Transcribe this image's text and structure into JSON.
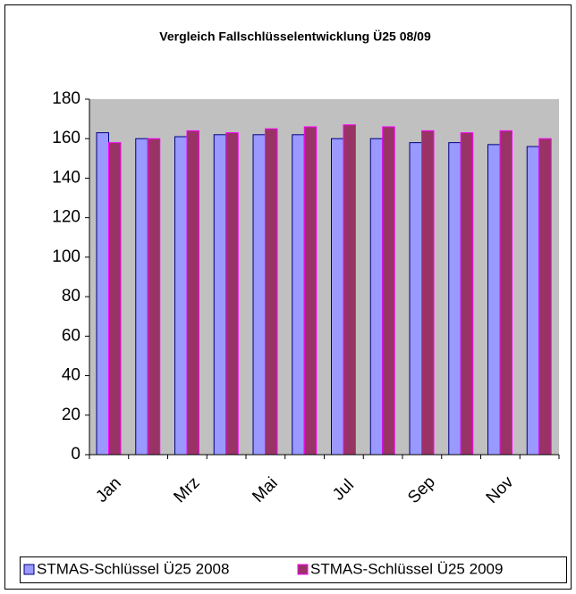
{
  "chart_data": {
    "type": "bar",
    "title": "Vergleich Fallschlüsselentwicklung Ü25 08/09",
    "categories": [
      "Jan",
      null,
      "Mrz",
      null,
      "Mai",
      null,
      "Jul",
      null,
      "Sep",
      null,
      "Nov",
      null
    ],
    "series": [
      {
        "name": "STMAS-Schlüssel Ü25 2008",
        "color": "#9999ff",
        "values": [
          163,
          160,
          161,
          162,
          162,
          162,
          160,
          160,
          158,
          158,
          157,
          156
        ]
      },
      {
        "name": "STMAS-Schlüssel Ü25 2009",
        "color": "#993366",
        "values": [
          158,
          160,
          164,
          163,
          165,
          166,
          167,
          166,
          164,
          163,
          164,
          160
        ]
      }
    ],
    "ylim": [
      0,
      180
    ],
    "yticks": [
      0,
      20,
      40,
      60,
      80,
      100,
      120,
      140,
      160,
      180
    ],
    "legend": "bottom"
  }
}
